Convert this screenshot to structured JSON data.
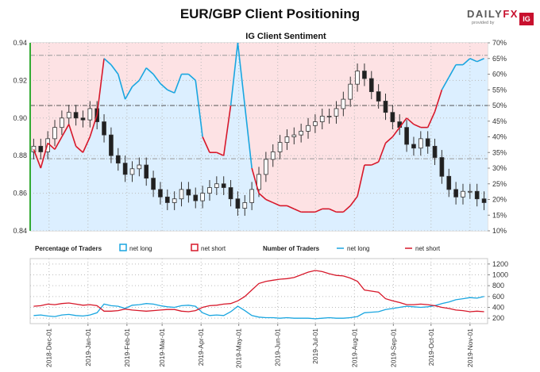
{
  "title": "EUR/GBP Client Positioning",
  "subtitle": "IG Client Sentiment",
  "logo": {
    "brand_left": "DAILY",
    "brand_x": "FX",
    "provided": "provided by",
    "ig": "IG"
  },
  "colors": {
    "net_long": "#1aa6e0",
    "net_short": "#d7182a",
    "long_fill": "#dcefff",
    "short_fill": "#fde2e4",
    "candle_up": "#404040",
    "candle_down": "#202020",
    "axis_green": "#33aa33"
  },
  "chart_data": [
    {
      "type": "candlestick+line",
      "yaxis_left": {
        "ticks": [
          "0.84",
          "0.86",
          "0.88",
          "0.90",
          "0.92",
          "0.94"
        ],
        "range": [
          0.84,
          0.94
        ]
      },
      "yaxis_right": {
        "ticks": [
          "10%",
          "15%",
          "20%",
          "25%",
          "30%",
          "35%",
          "40%",
          "45%",
          "50%",
          "55%",
          "60%",
          "65%",
          "70%"
        ],
        "range": [
          10,
          70
        ]
      },
      "x_dates": [
        "2018-12-01",
        "2019-01-01",
        "2019-02-01",
        "2019-03-01",
        "2019-04-01",
        "2019-05-01",
        "2019-06-01",
        "2019-07-01",
        "2019-08-01",
        "2019-09-01",
        "2019-10-01",
        "2019-11-01"
      ],
      "reference_line_pct": 50,
      "price_weekly": [
        0.885,
        0.882,
        0.889,
        0.895,
        0.9,
        0.903,
        0.9,
        0.899,
        0.905,
        0.898,
        0.891,
        0.88,
        0.876,
        0.87,
        0.873,
        0.875,
        0.868,
        0.862,
        0.858,
        0.855,
        0.857,
        0.862,
        0.859,
        0.856,
        0.86,
        0.863,
        0.865,
        0.863,
        0.857,
        0.852,
        0.855,
        0.862,
        0.87,
        0.878,
        0.882,
        0.887,
        0.89,
        0.891,
        0.893,
        0.896,
        0.898,
        0.901,
        0.901,
        0.905,
        0.91,
        0.918,
        0.925,
        0.921,
        0.914,
        0.909,
        0.903,
        0.898,
        0.895,
        0.886,
        0.884,
        0.889,
        0.885,
        0.879,
        0.869,
        0.862,
        0.858,
        0.861,
        0.861,
        0.857,
        0.855
      ],
      "net_long_pct_weekly": [
        36,
        30,
        38,
        36,
        40,
        44,
        37,
        35,
        40,
        47,
        65,
        63,
        60,
        52,
        56,
        58,
        62,
        60,
        57,
        55,
        54,
        60,
        60,
        58,
        40,
        35,
        35,
        34,
        50,
        70,
        50,
        30,
        22,
        20,
        19,
        18,
        18,
        17,
        16,
        16,
        16,
        17,
        17,
        16,
        16,
        18,
        21,
        31,
        31,
        32,
        38,
        40,
        43,
        46,
        44,
        43,
        43,
        48,
        55,
        59,
        63,
        63,
        65,
        64,
        65
      ],
      "net_short_pct_weekly": [
        64,
        70,
        62,
        64,
        60,
        56,
        63,
        65,
        60,
        53,
        35,
        37,
        40,
        48,
        44,
        42,
        38,
        40,
        43,
        45,
        46,
        40,
        40,
        42,
        60,
        65,
        65,
        66,
        50,
        30,
        50,
        70,
        78,
        80,
        81,
        82,
        82,
        83,
        84,
        84,
        84,
        83,
        83,
        84,
        84,
        82,
        79,
        69,
        69,
        68,
        62,
        60,
        57,
        54,
        56,
        57,
        57,
        52,
        45,
        41,
        37,
        37,
        35,
        36,
        35
      ]
    },
    {
      "type": "line",
      "legend_percentage": {
        "title": "Percentage of Traders",
        "net_long": "net long",
        "net_short": "net short"
      },
      "legend_number": {
        "title": "Number of Traders",
        "net_long": "net long",
        "net_short": "net short"
      },
      "yaxis_right": {
        "ticks": [
          "200",
          "400",
          "600",
          "800",
          "1000",
          "1200"
        ],
        "range": [
          100,
          1300
        ]
      },
      "x_tick_labels": [
        "2018-Dec-01",
        "2019-Jan-01",
        "2019-Feb-01",
        "2019-Mar-01",
        "2019-Apr-01",
        "2019-May-01",
        "2019-Jun-01",
        "2019-Jul-01",
        "2019-Aug-01",
        "2019-Sep-01",
        "2019-Oct-01",
        "2019-Nov-01"
      ],
      "net_long_count_weekly": [
        250,
        260,
        240,
        230,
        260,
        270,
        250,
        240,
        260,
        300,
        460,
        430,
        420,
        380,
        440,
        450,
        470,
        460,
        430,
        410,
        400,
        430,
        440,
        420,
        300,
        250,
        260,
        250,
        320,
        420,
        340,
        250,
        220,
        210,
        210,
        200,
        210,
        200,
        200,
        200,
        190,
        200,
        210,
        200,
        200,
        210,
        230,
        300,
        310,
        320,
        360,
        380,
        400,
        420,
        410,
        400,
        410,
        430,
        470,
        500,
        540,
        560,
        580,
        570,
        600
      ],
      "net_short_count_weekly": [
        420,
        430,
        460,
        450,
        470,
        480,
        460,
        440,
        450,
        430,
        330,
        330,
        340,
        370,
        350,
        340,
        330,
        340,
        350,
        360,
        360,
        330,
        320,
        340,
        400,
        430,
        440,
        460,
        470,
        520,
        600,
        720,
        840,
        880,
        900,
        920,
        930,
        950,
        1000,
        1050,
        1080,
        1060,
        1020,
        990,
        980,
        940,
        880,
        720,
        700,
        680,
        560,
        520,
        490,
        450,
        450,
        460,
        450,
        430,
        400,
        380,
        350,
        340,
        320,
        330,
        320
      ]
    }
  ]
}
